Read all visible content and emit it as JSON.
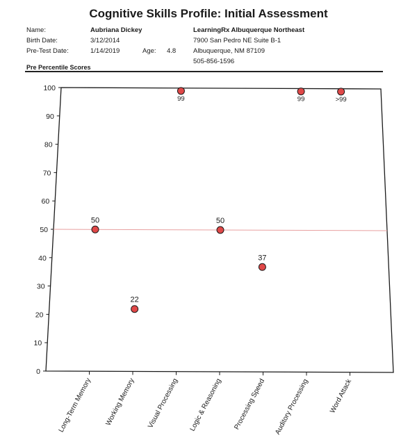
{
  "report": {
    "title": "Cognitive Skills Profile: Initial Assessment",
    "name_label": "Name:",
    "name": "Aubriana Dickey",
    "birth_label": "Birth Date:",
    "birth_date": "3/12/2014",
    "pretest_label": "Pre-Test Date:",
    "pretest_date": "1/14/2019",
    "age_label": "Age:",
    "age": "4.8",
    "center_name": "LearningRx Albuquerque Northeast",
    "address_1": "7900 San Pedro NE Suite B-1",
    "address_2": "Albuquerque, NM 87109",
    "phone": "505-856-1596",
    "section_title": "Pre Percentile Scores"
  },
  "chart_data": {
    "type": "scatter",
    "categories": [
      "Long-Term Memory",
      "Working Memory",
      "Visual Processing",
      "Logic & Reasoning",
      "Processing Speed",
      "Auditory Processing",
      "Word Attack"
    ],
    "values": [
      50,
      22,
      99,
      50,
      37,
      99,
      99
    ],
    "data_labels": [
      "50",
      "22",
      "99",
      "50",
      "37",
      "99",
      ">99"
    ],
    "yticks": [
      0,
      10,
      20,
      30,
      40,
      50,
      60,
      70,
      80,
      90,
      100
    ],
    "ylim": [
      0,
      100
    ],
    "reference_line": 50,
    "marker_color": "#e04848",
    "reference_line_color": "#e8a0a0",
    "grid": false
  }
}
